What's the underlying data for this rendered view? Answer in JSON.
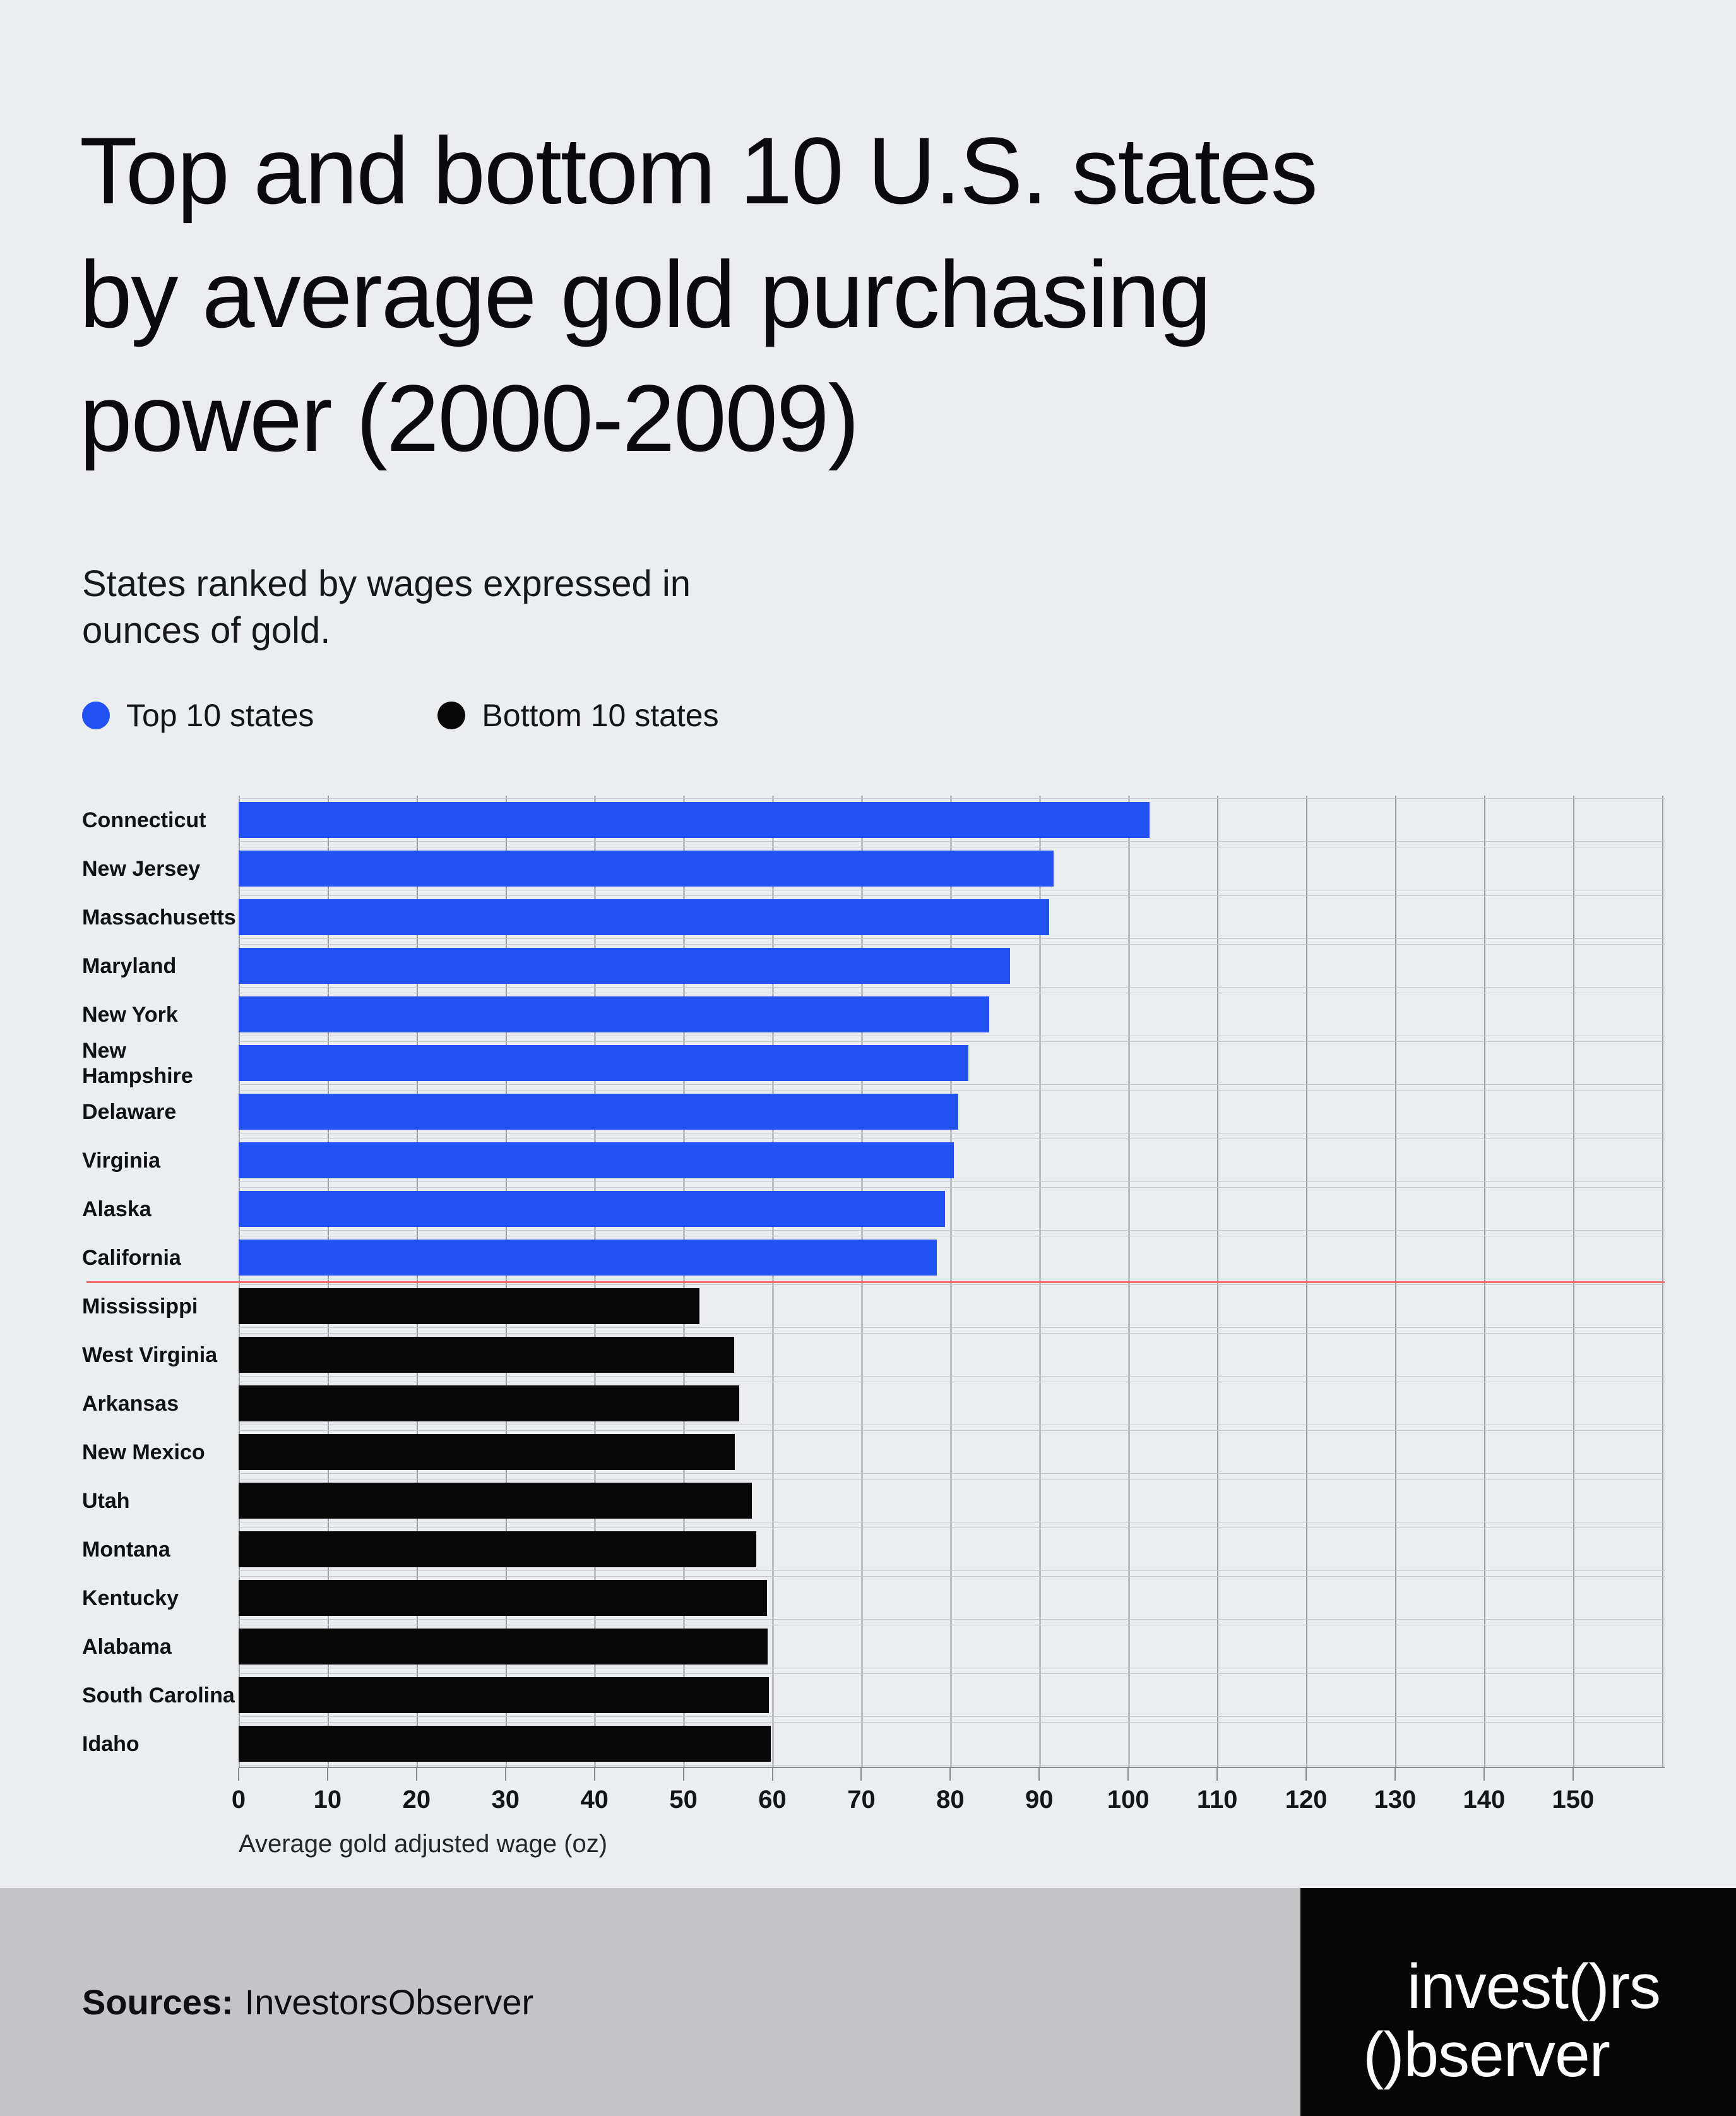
{
  "page": {
    "background": "#ecedf1",
    "title": "Top and bottom 10 U.S. states\nby average gold purchasing\npower (2000-2009)",
    "subtitle": "States ranked by wages expressed in\nounces of gold."
  },
  "legend": [
    {
      "label": "Top 10 states",
      "color": "#2252f3"
    },
    {
      "label": "Bottom 10 states",
      "color": "#070707"
    }
  ],
  "chart_data": {
    "type": "bar",
    "orientation": "horizontal",
    "title": "Top and bottom 10 U.S. states by average gold purchasing power (2000-2009)",
    "xlabel": "Average gold adjusted wage (oz)",
    "ylabel": "",
    "xlim": [
      0,
      160.3
    ],
    "xticks": [
      0,
      10,
      20,
      30,
      40,
      50,
      60,
      70,
      80,
      90,
      100,
      110,
      120,
      130,
      140,
      150
    ],
    "grid": "vertical",
    "legend_position": "top-left",
    "divider_after_category": "California",
    "divider_color": "#ee6f66",
    "series": [
      {
        "name": "Top 10 states",
        "color": "#2252f3",
        "categories": [
          "Connecticut",
          "New Jersey",
          "Massachusetts",
          "Maryland",
          "New York",
          "New\nHampshire",
          "Delaware",
          "Virginia",
          "Alaska",
          "California"
        ],
        "values": [
          102.4,
          91.6,
          91.1,
          86.7,
          84.4,
          82.0,
          80.9,
          80.4,
          79.4,
          78.5
        ]
      },
      {
        "name": "Bottom 10 states",
        "color": "#070707",
        "categories": [
          "Mississippi",
          "West Virginia",
          "Arkansas",
          "New Mexico",
          "Utah",
          "Montana",
          "Kentucky",
          "Alabama",
          "South Carolina",
          "Idaho"
        ],
        "values": [
          51.8,
          55.7,
          56.3,
          55.8,
          57.7,
          58.2,
          59.4,
          59.5,
          59.6,
          59.8
        ]
      }
    ]
  },
  "footer": {
    "sources_label": "Sources:",
    "sources_value": "InvestorsObserver",
    "logo_line1": "invest()rs",
    "logo_line2": "()bserver"
  }
}
